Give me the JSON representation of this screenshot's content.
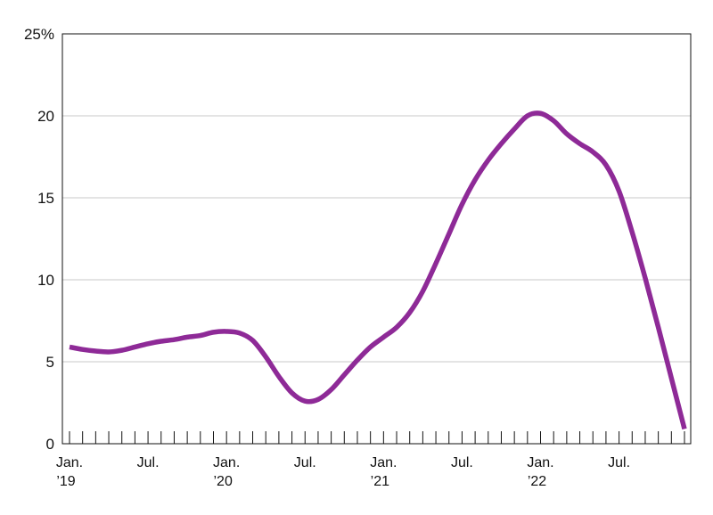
{
  "chart_data": {
    "type": "line",
    "title": "",
    "xlabel": "",
    "ylabel": "",
    "ylim": [
      0,
      25
    ],
    "y_ticks": [
      {
        "value": 0,
        "label": "0"
      },
      {
        "value": 5,
        "label": "5"
      },
      {
        "value": 10,
        "label": "10"
      },
      {
        "value": 15,
        "label": "15"
      },
      {
        "value": 20,
        "label": "20"
      },
      {
        "value": 25,
        "label": "25%"
      }
    ],
    "x_ticks": [
      {
        "date": "2019-01",
        "line1": "Jan.",
        "line2": "’19"
      },
      {
        "date": "2019-07",
        "line1": "Jul.",
        "line2": ""
      },
      {
        "date": "2020-01",
        "line1": "Jan.",
        "line2": "’20"
      },
      {
        "date": "2020-07",
        "line1": "Jul.",
        "line2": ""
      },
      {
        "date": "2021-01",
        "line1": "Jan.",
        "line2": "’21"
      },
      {
        "date": "2021-07",
        "line1": "Jul.",
        "line2": ""
      },
      {
        "date": "2022-01",
        "line1": "Jan.",
        "line2": "’22"
      },
      {
        "date": "2022-07",
        "line1": "Jul.",
        "line2": ""
      }
    ],
    "x_range": [
      "2019-01",
      "2022-12"
    ],
    "grid": true,
    "colors": {
      "line": "#8E2A97",
      "grid": "#c8c8c8",
      "axis": "#111111"
    },
    "series": [
      {
        "x": [
          "2019-01",
          "2019-02",
          "2019-03",
          "2019-04",
          "2019-05",
          "2019-06",
          "2019-07",
          "2019-08",
          "2019-09",
          "2019-10",
          "2019-11",
          "2019-12",
          "2020-01",
          "2020-02",
          "2020-03",
          "2020-04",
          "2020-05",
          "2020-06",
          "2020-07",
          "2020-08",
          "2020-09",
          "2020-10",
          "2020-11",
          "2020-12",
          "2021-01",
          "2021-02",
          "2021-03",
          "2021-04",
          "2021-05",
          "2021-06",
          "2021-07",
          "2021-08",
          "2021-09",
          "2021-10",
          "2021-11",
          "2021-12",
          "2022-01",
          "2022-02",
          "2022-03",
          "2022-04",
          "2022-05",
          "2022-06",
          "2022-07",
          "2022-08",
          "2022-09",
          "2022-10",
          "2022-11",
          "2022-12"
        ],
        "y": [
          5.9,
          5.75,
          5.65,
          5.6,
          5.7,
          5.9,
          6.1,
          6.25,
          6.35,
          6.5,
          6.6,
          6.8,
          6.85,
          6.75,
          6.3,
          5.3,
          4.1,
          3.1,
          2.6,
          2.7,
          3.3,
          4.2,
          5.1,
          5.9,
          6.5,
          7.1,
          8.0,
          9.3,
          11.0,
          12.8,
          14.6,
          16.1,
          17.3,
          18.3,
          19.2,
          20.0,
          20.15,
          19.7,
          18.9,
          18.3,
          17.8,
          17.0,
          15.4,
          12.9,
          10.1,
          7.1,
          4.0,
          0.9
        ]
      }
    ]
  }
}
